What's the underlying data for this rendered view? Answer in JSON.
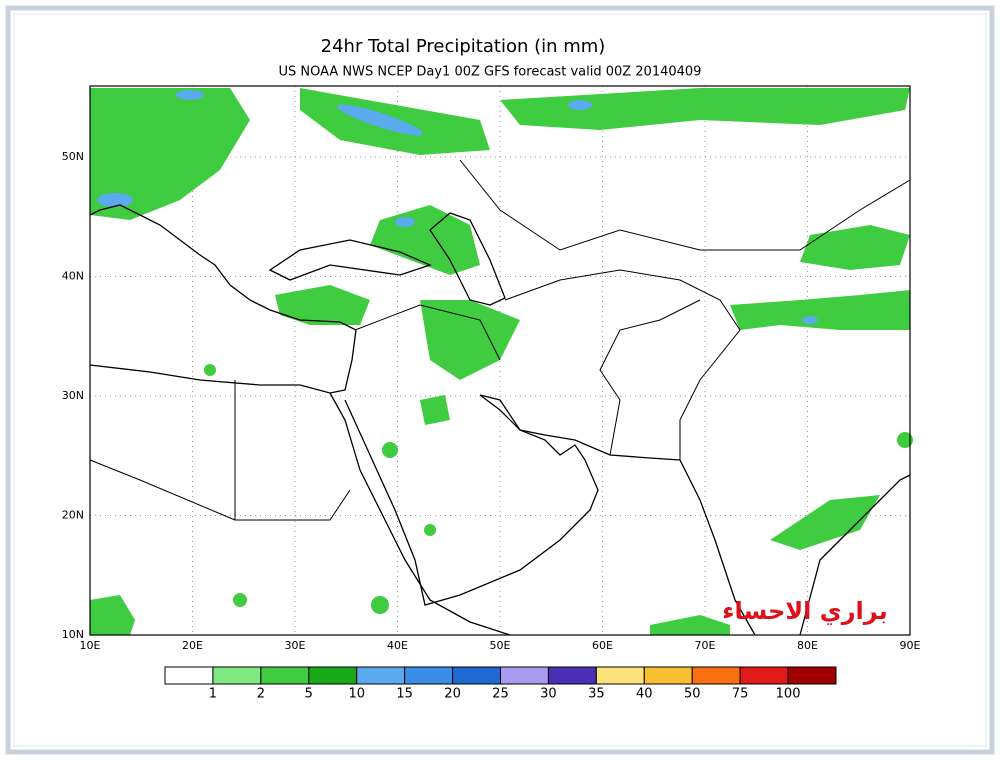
{
  "header": {
    "title": "24hr Total Precipitation (in mm)",
    "subtitle": "US NOAA NWS NCEP Day1 00Z GFS forecast valid 00Z 20140409"
  },
  "map": {
    "lon_labels": [
      "10E",
      "20E",
      "30E",
      "40E",
      "50E",
      "60E",
      "70E",
      "80E",
      "90E"
    ],
    "lat_labels": [
      "10N",
      "20N",
      "30N",
      "40N",
      "50N"
    ]
  },
  "colorbar": {
    "colors": [
      "#ffffff",
      "#80e880",
      "#40cc40",
      "#18a818",
      "#5aaaf0",
      "#3a8ee8",
      "#1e6ad2",
      "#a89bf0",
      "#4a2fb4",
      "#fbe27a",
      "#f8c030",
      "#f87010",
      "#e01a1a",
      "#a00000"
    ],
    "labels": [
      1,
      2,
      5,
      10,
      15,
      20,
      25,
      30,
      35,
      40,
      50,
      75,
      100
    ]
  },
  "watermark": "براري الاحساء"
}
